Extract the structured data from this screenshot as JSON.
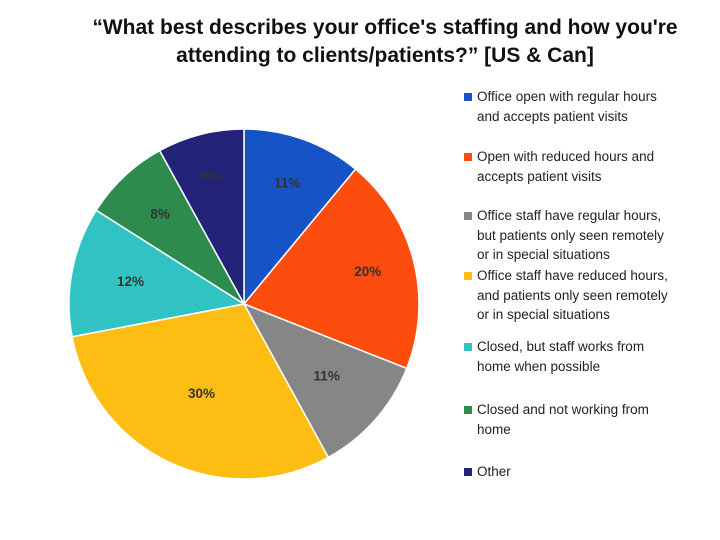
{
  "chart_data": {
    "type": "pie",
    "title": [
      "“What best describes your office's staffing and how you're",
      "attending to clients/patients?” [US & Can]"
    ],
    "labels": [
      "Office open with regular hours and accepts patient visits",
      "Open with reduced hours and accepts patient visits",
      "Office staff have regular hours, but patients only seen remotely or in special situations",
      "Office staff have reduced hours, and patients only seen remotely or in special situations",
      "Closed, but staff works from home when possible",
      "Closed and not working from home",
      "Other"
    ],
    "values": [
      11,
      20,
      11,
      30,
      12,
      8,
      8
    ],
    "data_labels": [
      "11%",
      "20%",
      "11%",
      "30%",
      "12%",
      "8%",
      "8%"
    ],
    "colors": [
      "#1653c7",
      "#fd4d0e",
      "#868686",
      "#fdbd12",
      "#31c3c3",
      "#2e8b4e",
      "#23237a"
    ],
    "legend_position": "right"
  },
  "legend": {
    "items": [
      {
        "lines": [
          "Office open with regular hours",
          "and accepts patient visits"
        ]
      },
      {
        "lines": [
          "Open with reduced hours and",
          "accepts patient visits"
        ]
      },
      {
        "lines": [
          "Office staff have regular hours,",
          "but patients only seen remotely",
          "or in special situations"
        ]
      },
      {
        "lines": [
          "Office staff have reduced hours,",
          "and patients only seen remotely",
          "or in special situations"
        ]
      },
      {
        "lines": [
          "Closed, but staff works from",
          "home when possible"
        ]
      },
      {
        "lines": [
          "Closed and not working from",
          "home"
        ]
      },
      {
        "lines": [
          "Other"
        ]
      }
    ]
  }
}
